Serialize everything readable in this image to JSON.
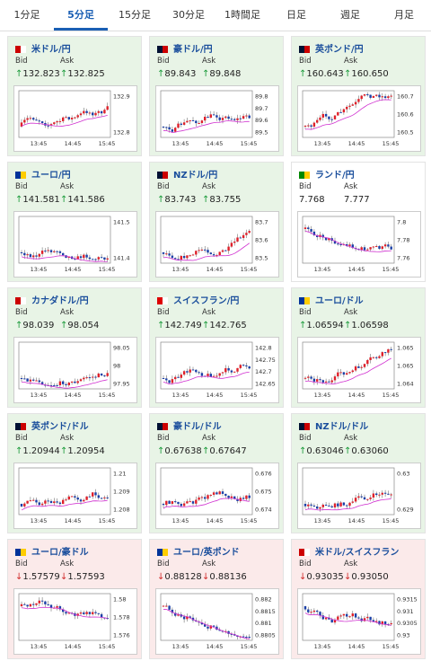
{
  "tabs": [
    "1分足",
    "5分足",
    "15分足",
    "30分足",
    "1時間足",
    "日足",
    "週足",
    "月足"
  ],
  "selected_tab": 1,
  "labels": {
    "bid": "Bid",
    "ask": "Ask"
  },
  "x_labels": [
    "13:45",
    "14:45",
    "15:45"
  ],
  "cards": [
    {
      "name": "米ドル/円",
      "direction": "↑",
      "bid": "132.823",
      "ask": "132.825",
      "yticks": [
        "132.9",
        "132.8"
      ]
    },
    {
      "name": "豪ドル/円",
      "direction": "↑",
      "bid": "89.843",
      "ask": "89.848",
      "yticks": [
        "89.8",
        "89.7",
        "89.6",
        "89.5"
      ]
    },
    {
      "name": "英ポンド/円",
      "direction": "↑",
      "bid": "160.643",
      "ask": "160.650",
      "yticks": [
        "160.7",
        "160.6",
        "160.5"
      ]
    },
    {
      "name": "ユーロ/円",
      "direction": "↑",
      "bid": "141.581",
      "ask": "141.586",
      "yticks": [
        "141.5",
        "141.4"
      ]
    },
    {
      "name": "NZドル/円",
      "direction": "↑",
      "bid": "83.743",
      "ask": "83.755",
      "yticks": [
        "83.7",
        "83.6",
        "83.5"
      ]
    },
    {
      "name": "ランド/円",
      "bid": "7.768",
      "ask": "7.777",
      "yticks": [
        "7.8",
        "7.78",
        "7.76"
      ]
    },
    {
      "name": "カナダドル/円",
      "direction": "↑",
      "bid": "98.039",
      "ask": "98.054",
      "yticks": [
        "98.05",
        "98",
        "97.95"
      ]
    },
    {
      "name": "スイスフラン/円",
      "direction": "↑",
      "bid": "142.749",
      "ask": "142.765",
      "yticks": [
        "142.8",
        "142.75",
        "142.7",
        "142.65"
      ]
    },
    {
      "name": "ユーロ/ドル",
      "direction": "↑",
      "bid": "1.06594",
      "ask": "1.06598",
      "yticks": [
        "1.065",
        "1.065",
        "1.064"
      ]
    },
    {
      "name": "英ポンド/ドル",
      "direction": "↑",
      "bid": "1.20944",
      "ask": "1.20954",
      "yticks": [
        "1.21",
        "1.209",
        "1.208"
      ]
    },
    {
      "name": "豪ドル/ドル",
      "direction": "↑",
      "bid": "0.67638",
      "ask": "0.67647",
      "yticks": [
        "0.676",
        "0.675",
        "0.674"
      ]
    },
    {
      "name": "NZドル/ドル",
      "direction": "↑",
      "bid": "0.63046",
      "ask": "0.63060",
      "yticks": [
        "0.63",
        "0.629"
      ]
    },
    {
      "name": "ユーロ/豪ドル",
      "direction": "↓",
      "bid": "1.57579",
      "ask": "1.57593",
      "yticks": [
        "1.58",
        "1.578",
        "1.576"
      ]
    },
    {
      "name": "ユーロ/英ポンド",
      "direction": "↓",
      "bid": "0.88128",
      "ask": "0.88136",
      "yticks": [
        "0.882",
        "0.8815",
        "0.881",
        "0.8805"
      ]
    },
    {
      "name": "米ドル/スイスフラン",
      "direction": "↓",
      "bid": "0.93035",
      "ask": "0.93050",
      "yticks": [
        "0.9315",
        "0.931",
        "0.9305",
        "0.93"
      ]
    }
  ]
}
